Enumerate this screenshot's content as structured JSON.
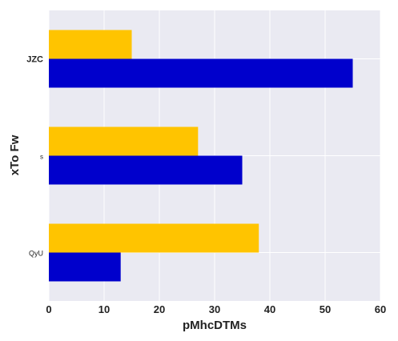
{
  "chart_data": {
    "type": "bar",
    "orientation": "horizontal",
    "categories": [
      "QyU",
      "s",
      "JZC"
    ],
    "series": [
      {
        "values": [
          13,
          35,
          55
        ],
        "color": "#0000cc"
      },
      {
        "values": [
          38,
          27,
          15
        ],
        "color": "#ffc400"
      }
    ],
    "xlabel": "pMhcDTMs",
    "ylabel": "xTo Fw",
    "xlim": [
      0,
      60
    ],
    "xticks": [
      0,
      10,
      20,
      30,
      40,
      50,
      60
    ],
    "grid": true,
    "legend": "none",
    "background": "#eaeaf2"
  }
}
